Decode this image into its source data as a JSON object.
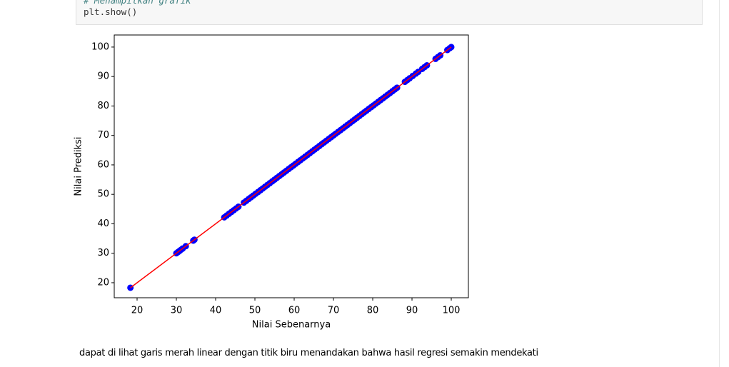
{
  "code_cell": {
    "lines": [
      "# Menampilkan grafik",
      "plt.show()"
    ]
  },
  "chart_data": {
    "type": "scatter",
    "xlabel": "Nilai Sebenarnya",
    "ylabel": "Nilai Prediksi",
    "x": [
      18.3,
      30,
      30.4,
      30.8,
      31.2,
      31.6,
      32.4,
      34.3,
      34.6,
      42.2,
      42.8,
      43.4,
      44,
      44.6,
      45.2,
      45.8,
      47.2,
      47.8,
      48.4,
      49,
      49.6,
      50.2,
      50.8,
      51.4,
      52,
      52.6,
      53.2,
      53.8,
      54.4,
      55,
      55.6,
      56.2,
      56.8,
      57.4,
      58,
      58.6,
      59.2,
      59.8,
      60.4,
      61,
      61.6,
      62.2,
      62.8,
      63.4,
      64,
      64.6,
      65.2,
      65.8,
      66.4,
      67,
      67.6,
      68.2,
      68.8,
      69.4,
      70,
      70.6,
      71.2,
      71.8,
      72.4,
      73,
      73.6,
      74.2,
      74.8,
      75.4,
      76,
      76.6,
      77.2,
      77.8,
      78.4,
      79,
      79.6,
      80.2,
      80.8,
      81.4,
      82,
      82.6,
      83.2,
      83.8,
      84.4,
      85,
      85.6,
      86.2,
      88.2,
      88.8,
      89.4,
      90.2,
      91,
      91.6,
      92.6,
      93.2,
      93.8,
      96,
      96.6,
      97.2,
      99,
      99.6,
      100
    ],
    "series": [
      {
        "color": "#0000ff",
        "values": [
          18.3,
          30,
          30.4,
          30.8,
          31.2,
          31.6,
          32.4,
          34.3,
          34.6,
          42.2,
          42.8,
          43.4,
          44,
          44.6,
          45.2,
          45.8,
          47.2,
          47.8,
          48.4,
          49,
          49.6,
          50.2,
          50.8,
          51.4,
          52,
          52.6,
          53.2,
          53.8,
          54.4,
          55,
          55.6,
          56.2,
          56.8,
          57.4,
          58,
          58.6,
          59.2,
          59.8,
          60.4,
          61,
          61.6,
          62.2,
          62.8,
          63.4,
          64,
          64.6,
          65.2,
          65.8,
          66.4,
          67,
          67.6,
          68.2,
          68.8,
          69.4,
          70,
          70.6,
          71.2,
          71.8,
          72.4,
          73,
          73.6,
          74.2,
          74.8,
          75.4,
          76,
          76.6,
          77.2,
          77.8,
          78.4,
          79,
          79.6,
          80.2,
          80.8,
          81.4,
          82,
          82.6,
          83.2,
          83.8,
          84.4,
          85,
          85.6,
          86.2,
          88.2,
          88.8,
          89.4,
          90.2,
          91,
          91.6,
          92.6,
          93.2,
          93.8,
          96,
          96.6,
          97.2,
          99,
          99.6,
          100
        ]
      }
    ],
    "fit_line": {
      "color": "#ff0000",
      "x": [
        18.3,
        100
      ],
      "values": [
        18.3,
        100
      ]
    },
    "xlim": [
      14.18,
      104.36
    ],
    "ylim": [
      14.9,
      104.1
    ],
    "xticks": [
      20,
      30,
      40,
      50,
      60,
      70,
      80,
      90,
      100
    ],
    "yticks": [
      20,
      30,
      40,
      50,
      60,
      70,
      80,
      90,
      100
    ],
    "grid": false
  },
  "markdown": {
    "text": "dapat di lihat garis merah linear dengan titik biru menandakan bahwa hasil regresi semakin mendekati"
  }
}
